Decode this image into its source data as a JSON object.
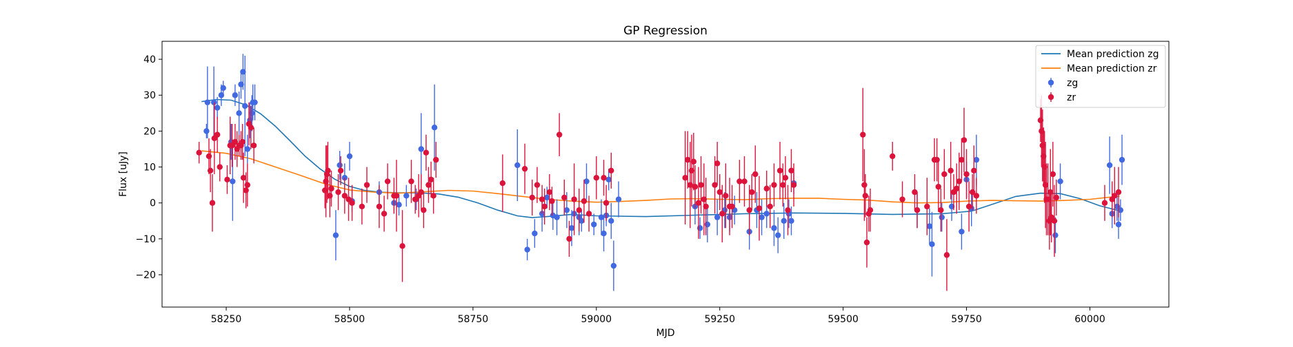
{
  "chart_data": {
    "type": "scatter",
    "title": "GP Regression",
    "xlabel": "MJD",
    "ylabel": "Flux [uJy]",
    "xlim": [
      58120,
      60160
    ],
    "ylim": [
      -29,
      45
    ],
    "xticks": [
      58250,
      58500,
      58750,
      59000,
      59250,
      59500,
      59750,
      60000
    ],
    "yticks": [
      -20,
      -10,
      0,
      10,
      20,
      30,
      40
    ],
    "grid": false,
    "legend_position": "top-right",
    "legend": [
      {
        "label": "Mean prediction zg",
        "kind": "line",
        "color": "#1f77b4"
      },
      {
        "label": "Mean prediction zr",
        "kind": "line",
        "color": "#ff7f0e"
      },
      {
        "label": "zg",
        "kind": "errorbar",
        "color": "#4169e1"
      },
      {
        "label": "zr",
        "kind": "errorbar",
        "color": "#dc143c"
      }
    ],
    "series": [
      {
        "name": "Mean prediction zg",
        "kind": "line",
        "color": "#1f77b4",
        "x": [
          58200,
          58230,
          58260,
          58290,
          58320,
          58350,
          58380,
          58410,
          58440,
          58470,
          58500,
          58530,
          58560,
          58600,
          58640,
          58680,
          58720,
          58760,
          58800,
          58840,
          58870,
          58900,
          58950,
          59000,
          59100,
          59200,
          59300,
          59400,
          59500,
          59600,
          59700,
          59760,
          59800,
          59850,
          59900,
          59940,
          59980,
          60020,
          60060
        ],
        "y": [
          28.2,
          28.8,
          28.6,
          27.3,
          24.8,
          21.3,
          17.2,
          13.0,
          9.5,
          6.6,
          4.6,
          3.5,
          3.0,
          2.8,
          2.8,
          2.5,
          1.6,
          0.0,
          -2.0,
          -3.6,
          -4.1,
          -3.8,
          -3.2,
          -3.6,
          -3.8,
          -3.4,
          -3.0,
          -2.8,
          -2.9,
          -3.2,
          -3.0,
          -2.3,
          -0.5,
          1.8,
          2.7,
          2.6,
          1.2,
          -0.8,
          -2.2
        ]
      },
      {
        "name": "Mean prediction zr",
        "kind": "line",
        "color": "#ff7f0e",
        "x": [
          58200,
          58250,
          58300,
          58350,
          58400,
          58450,
          58500,
          58550,
          58600,
          58650,
          58700,
          58750,
          58800,
          58850,
          58900,
          58950,
          59000,
          59050,
          59100,
          59150,
          59200,
          59250,
          59300,
          59350,
          59400,
          59450,
          59500,
          59550,
          59600,
          59650,
          59700,
          59750,
          59800,
          59850,
          59900,
          59950,
          60000,
          60060
        ],
        "y": [
          14.5,
          13.8,
          12.3,
          10.0,
          7.7,
          5.3,
          3.6,
          3.0,
          2.7,
          3.1,
          3.5,
          3.3,
          2.6,
          1.8,
          1.0,
          0.5,
          0.2,
          0.4,
          0.7,
          1.1,
          1.2,
          1.0,
          0.9,
          1.2,
          1.3,
          1.3,
          1.0,
          0.8,
          0.3,
          0.0,
          0.1,
          0.5,
          0.7,
          0.6,
          0.5,
          0.7,
          1.0,
          1.9
        ]
      },
      {
        "name": "zg",
        "kind": "errorbar",
        "color": "#4169e1",
        "x": [
          58210,
          58212,
          58225,
          58232,
          58240,
          58244,
          58260,
          58263,
          58268,
          58276,
          58280,
          58284,
          58288,
          58293,
          58298,
          58302,
          58304,
          58308,
          58472,
          58480,
          58490,
          58500,
          58505,
          58560,
          58590,
          58600,
          58615,
          58635,
          58645,
          58660,
          58672,
          58840,
          58860,
          58875,
          58890,
          58900,
          58912,
          58920,
          58940,
          58950,
          58955,
          58965,
          58970,
          58980,
          58995,
          59010,
          59015,
          59020,
          59025,
          59030,
          59035,
          59045,
          59200,
          59210,
          59225,
          59245,
          59260,
          59270,
          59280,
          59310,
          59325,
          59335,
          59345,
          59360,
          59368,
          59380,
          59390,
          59395,
          59400,
          59650,
          59675,
          59680,
          59700,
          59720,
          59740,
          59750,
          59760,
          59770,
          59930,
          59940,
          60040,
          60045,
          60055,
          60058,
          60062,
          60065
        ],
        "y": [
          20,
          28,
          28,
          26.5,
          30,
          32,
          17,
          6,
          30,
          25,
          33,
          36.5,
          27,
          15,
          23,
          25,
          28,
          28,
          -9,
          10.5,
          7,
          13,
          0.5,
          3,
          0,
          -0.5,
          2,
          1,
          15,
          5,
          21,
          10.5,
          -13,
          -8.5,
          -3,
          1.5,
          -3.5,
          -4,
          -2,
          -7,
          -3,
          -4,
          -5,
          6,
          -6,
          -4,
          -8.5,
          -3.5,
          6.5,
          -5,
          -17.5,
          1,
          -1,
          -7,
          -6,
          -4,
          -2,
          -4,
          -2,
          -8,
          -2,
          -4,
          -3,
          -7,
          -9,
          -5,
          -3,
          -5,
          5.5,
          -2,
          -6.5,
          -11.5,
          -4,
          -1,
          -8,
          6.5,
          -1.5,
          12,
          -9,
          6,
          10.5,
          -3,
          -1,
          -6,
          -2,
          12
        ],
        "err": [
          2,
          10,
          10,
          3,
          3,
          2,
          5,
          11,
          3,
          6,
          4,
          5,
          14,
          4,
          5,
          5,
          5,
          5,
          7,
          4,
          4,
          4,
          3,
          3,
          3,
          3,
          3,
          3,
          10,
          3,
          12,
          10,
          3,
          4,
          5,
          3,
          4,
          5,
          5,
          5,
          4,
          5,
          3,
          5,
          3,
          5,
          5,
          3,
          3,
          5,
          7,
          5,
          5,
          3,
          5,
          5,
          5,
          4,
          4,
          5,
          5,
          5,
          4,
          5,
          5,
          5,
          4,
          4,
          3,
          5,
          5,
          9,
          4,
          4,
          5,
          5,
          5,
          7,
          5,
          5,
          8,
          4,
          4,
          4,
          3,
          7
        ],
        "units": "uJy"
      },
      {
        "name": "zr",
        "kind": "errorbar",
        "color": "#dc143c",
        "x": [
          58195,
          58215,
          58218,
          58222,
          58226,
          58232,
          58237,
          58252,
          58258,
          58262,
          58268,
          58272,
          58276,
          58280,
          58283,
          58285,
          58290,
          58293,
          58296,
          58300,
          58306,
          58450,
          58452,
          58454,
          58456,
          58460,
          58463,
          58477,
          58482,
          58490,
          58498,
          58505,
          58525,
          58535,
          58560,
          58570,
          58577,
          58590,
          58595,
          58607,
          58625,
          58633,
          58640,
          58645,
          58650,
          58655,
          58660,
          58665,
          58670,
          58675,
          58810,
          58855,
          58870,
          58880,
          58890,
          58895,
          58905,
          58910,
          58925,
          58935,
          58945,
          58955,
          58965,
          58975,
          58985,
          59000,
          59015,
          59020,
          59030,
          59180,
          59185,
          59190,
          59193,
          59197,
          59200,
          59207,
          59212,
          59218,
          59222,
          59240,
          59245,
          59250,
          59255,
          59262,
          59270,
          59275,
          59290,
          59300,
          59310,
          59315,
          59322,
          59330,
          59345,
          59352,
          59360,
          59372,
          59378,
          59383,
          59388,
          59395,
          59400,
          59540,
          59543,
          59545,
          59548,
          59552,
          59555,
          59600,
          59620,
          59645,
          59650,
          59670,
          59685,
          59690,
          59693,
          59698,
          59705,
          59710,
          59718,
          59724,
          59730,
          59735,
          59740,
          59745,
          59750,
          59755,
          59762,
          59765,
          59770,
          59900,
          59902,
          59904,
          59906,
          59908,
          59910,
          59912,
          59915,
          59918,
          59920,
          59922,
          59925,
          59928,
          59932,
          60030,
          60045,
          60050,
          60058
        ],
        "y": [
          14,
          13,
          9,
          0,
          18,
          19,
          10,
          6.5,
          16,
          16,
          17,
          15,
          16,
          16,
          17,
          7,
          3.5,
          5,
          22,
          21,
          16,
          3.5,
          6,
          8,
          9,
          2,
          4,
          3,
          9,
          2,
          1,
          0,
          -1,
          5,
          -1,
          -3,
          6,
          2,
          2,
          -12,
          6,
          1,
          2,
          3,
          -2,
          14,
          5,
          6.5,
          2,
          12,
          5.5,
          9.5,
          1.5,
          5,
          1,
          -1,
          3,
          0.5,
          19,
          1.5,
          -10,
          1,
          -2,
          0.5,
          -3,
          7,
          7,
          0,
          9,
          7,
          12,
          5,
          9,
          11.5,
          4.5,
          0,
          5,
          1,
          -1,
          5,
          11,
          3,
          -3,
          2,
          -1,
          -1,
          6,
          6,
          -2,
          3,
          8,
          -1.5,
          4,
          -1,
          5,
          9,
          5,
          7,
          -2,
          9,
          5,
          19,
          5,
          2,
          -11,
          -3,
          -2,
          13,
          1,
          3,
          -2,
          -1,
          12,
          12,
          4.5,
          -2,
          8,
          -14.5,
          9,
          3,
          4,
          6,
          12,
          17.5,
          8,
          -1,
          3,
          9,
          2,
          23,
          20,
          16,
          13,
          10,
          5,
          1,
          1,
          -5,
          3,
          -4,
          8,
          -5,
          1.5,
          0,
          1,
          2,
          3
        ],
        "err": [
          3,
          5,
          6,
          8,
          10,
          5,
          4,
          4,
          8,
          6,
          5,
          5,
          3,
          4,
          5,
          7,
          5,
          6,
          6,
          6,
          5,
          5,
          10,
          8,
          8,
          6,
          5,
          5,
          4,
          5,
          6,
          5,
          5,
          5,
          6,
          5,
          5,
          5,
          10,
          10,
          6,
          4,
          6,
          5,
          5,
          5,
          5,
          5,
          5,
          5,
          8,
          7,
          5,
          5,
          4,
          5,
          5,
          4,
          6,
          5,
          5,
          10,
          6,
          6,
          5,
          6,
          5,
          5,
          5,
          13,
          8,
          12,
          10,
          8,
          6,
          10,
          8,
          10,
          8,
          8,
          6,
          5,
          8,
          9,
          8,
          6,
          6,
          7,
          7,
          5,
          8,
          9,
          5,
          6,
          6,
          8,
          6,
          6,
          7,
          6,
          6,
          13,
          10,
          6,
          7,
          5,
          6,
          4,
          5,
          5,
          5,
          8,
          6,
          6,
          7,
          6,
          7,
          10,
          8,
          5,
          7,
          8,
          6,
          9,
          7,
          7,
          5,
          7,
          5,
          6,
          10,
          10,
          8,
          10,
          12,
          10,
          10,
          8,
          12,
          7,
          9,
          10,
          5,
          5,
          5,
          8,
          7
        ],
        "units": "uJy"
      }
    ]
  }
}
